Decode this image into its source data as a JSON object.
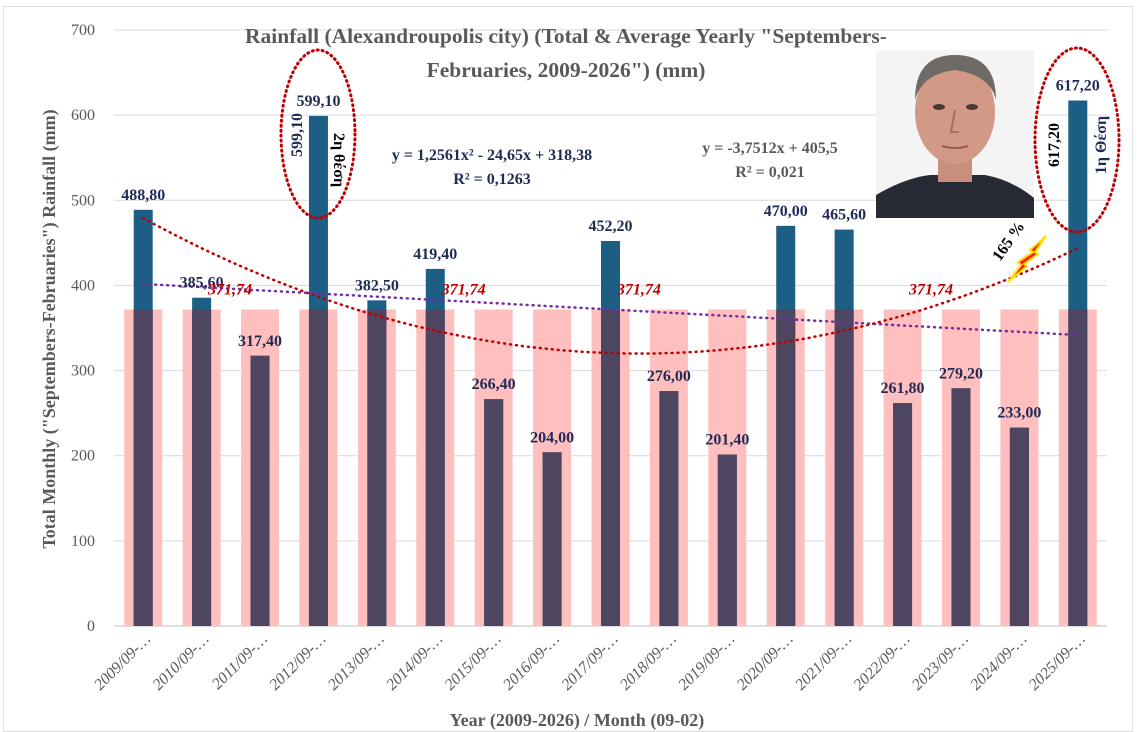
{
  "chart_data": {
    "type": "bar",
    "title_line1": "Rainfall (Alexandroupolis city) (Total & Average Yearly \"Septembers-",
    "title_line2": "Februaries, 2009-2026\") (mm)",
    "xlabel": "Year (2009-2026) / Month (09-02)",
    "ylabel": "Total Monthly (\"Septembers-Februaries\") Rainfall (mm)",
    "ylim": [
      0,
      700
    ],
    "yticks": [
      0,
      100,
      200,
      300,
      400,
      500,
      600,
      700
    ],
    "grid": true,
    "categories": [
      "2009/09-…",
      "2010/09-…",
      "2011/09-…",
      "2012/09-…",
      "2013/09-…",
      "2014/09-…",
      "2015/09-…",
      "2016/09-…",
      "2017/09-…",
      "2018/09-…",
      "2019/09-…",
      "2020/09-…",
      "2021/09-…",
      "2022/09-…",
      "2023/09-…",
      "2024/09-…",
      "2025/09-…"
    ],
    "series": [
      {
        "values": [
          488.8,
          385.6,
          317.4,
          599.1,
          382.5,
          419.4,
          266.4,
          204.0,
          452.2,
          276.0,
          201.4,
          470.0,
          465.6,
          261.8,
          279.2,
          233.0,
          617.2
        ],
        "labels": [
          "488,80",
          "385,60",
          "317,40",
          "599,10",
          "382,50",
          "419,40",
          "266,40",
          "204,00",
          "452,20",
          "276,00",
          "201,40",
          "470,00",
          "465,60",
          "261,80",
          "279,20",
          "233,00",
          "617,20"
        ],
        "color": "#1d5f84"
      },
      {
        "values": [
          371.74,
          371.74,
          371.74,
          371.74,
          371.74,
          371.74,
          371.74,
          371.74,
          371.74,
          371.74,
          371.74,
          371.74,
          371.74,
          371.74,
          371.74,
          371.74,
          371.74
        ],
        "label": "371,74",
        "color": "#ffbfbf"
      }
    ],
    "average_label_positions": [
      3,
      7,
      10,
      15
    ],
    "trendlines": [
      {
        "type": "polynomial",
        "equation": "y = 1,2561x² - 24,65x + 318,38",
        "r2": "R² = 0,1263",
        "color": "#c00000"
      },
      {
        "type": "linear",
        "equation": "y = -3,7512x + 405,5",
        "r2": "R² = 0,021",
        "color": "#7030a0"
      }
    ],
    "annotations": {
      "second_value": "599,10",
      "second_place": "2η θέση",
      "first_value": "617,20",
      "first_place": "1η Θέση",
      "percent": "165 %"
    },
    "overlap_color": "#4e4560"
  }
}
